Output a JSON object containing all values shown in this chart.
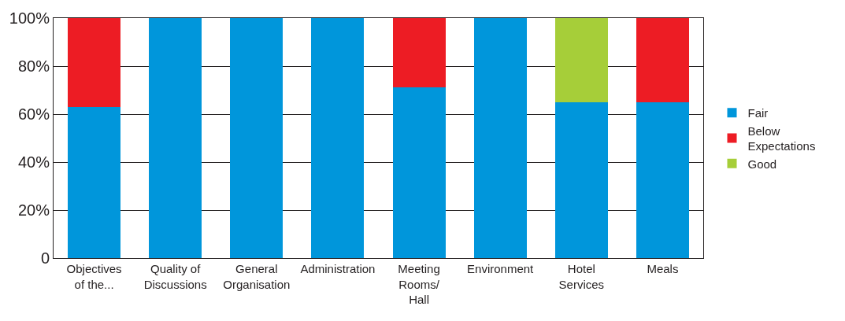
{
  "chart_data": {
    "type": "bar",
    "stacked": true,
    "categories": [
      "Objectives\nof the...",
      "Quality of\nDiscussions",
      "General\nOrganisation",
      "Administration",
      "Meeting\nRooms/\nHall",
      "Environment",
      "Hotel\nServices",
      "Meals"
    ],
    "series": [
      {
        "name": "Fair",
        "color": "#0096db",
        "values": [
          63,
          100,
          100,
          100,
          71,
          100,
          65,
          65
        ]
      },
      {
        "name": "Below\nExpectations",
        "color": "#ed1c24",
        "values": [
          37,
          null,
          null,
          null,
          29,
          null,
          null,
          35
        ]
      },
      {
        "name": "Good",
        "color": "#a6ce39",
        "values": [
          null,
          null,
          null,
          null,
          null,
          null,
          35,
          null
        ]
      }
    ],
    "ylim": [
      0,
      100
    ],
    "yticks": [
      {
        "value": 0,
        "label": "0"
      },
      {
        "value": 20,
        "label": "20%"
      },
      {
        "value": 40,
        "label": "40%"
      },
      {
        "value": 60,
        "label": "60%"
      },
      {
        "value": 80,
        "label": "80%"
      },
      {
        "value": 100,
        "label": "100%"
      }
    ],
    "grid": "y",
    "legend": "right"
  }
}
